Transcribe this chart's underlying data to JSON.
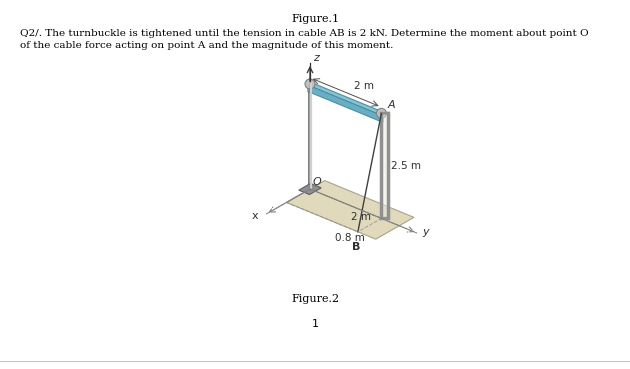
{
  "title": "Figure.1",
  "question": "Q2/. The turnbuckle is tightened until the tension in cable AB is 2 kN. Determine the moment about point O\nof the cable force acting on point A and the magnitude of this moment.",
  "figure_label": "Figure.2",
  "page_number": "1",
  "bg_color": "#ffffff",
  "fig_bg": "#d8d8d8",
  "dim_2m_label": "2 m",
  "dim_25m_label": "2.5 m",
  "dim_2m_y_label": "2 m",
  "dim_08m_label": "0.8 m",
  "point_A": "A",
  "point_B": "B",
  "point_O": "O",
  "axis_x": "x",
  "axis_y": "y",
  "axis_z": "z",
  "pole_color": "#a0a0a0",
  "beam_color": "#89c4d8",
  "cable_color": "#404040",
  "base_color": "#c0b090",
  "structure_bg": "#e8e8e0",
  "dashed_color": "#808080",
  "text_color": "#000000"
}
